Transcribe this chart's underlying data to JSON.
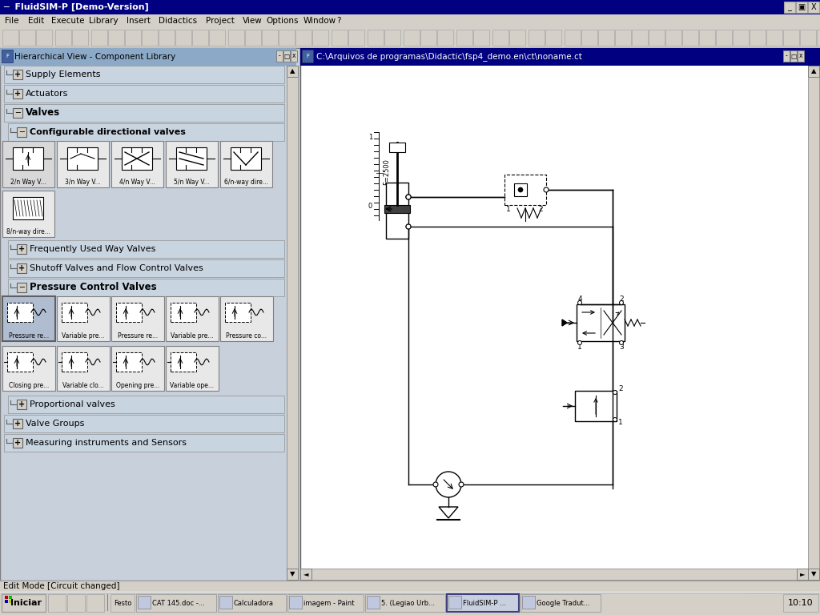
{
  "title_bar": "FluidSIM-P [Demo-Version]",
  "menu_items": [
    "File",
    "Edit",
    "Execute",
    "Library",
    "Insert",
    "Didactics",
    "Project",
    "View",
    "Options",
    "Window",
    "?"
  ],
  "left_panel_title": "Hierarchical View - Component Library",
  "right_panel_title": "C:\\Arquivos de programas\\Didactic\\fsp4_demo.en\\ct\\noname.ct",
  "status_bar": "Edit Mode [Circuit changed]",
  "taskbar_time": "10:10",
  "taskbar_items": [
    "Iniciar",
    "Festo",
    "CAT 145.doc -...",
    "Calculadora",
    "imagem - Paint",
    "5. (Legiao Urb...",
    "FluidSIM-P ...",
    "Google Tradut..."
  ],
  "valve_labels_row1": [
    "2/n Way V...",
    "3/n Way V...",
    "4/n Way V...",
    "5/n Way V...",
    "6/n-way dire..."
  ],
  "valve_labels_row2": [
    "8/n-way dire..."
  ],
  "pressure_labels_row1": [
    "Pressure re...",
    "Variable pre...",
    "Pressure re...",
    "Variable pre...",
    "Pressure co..."
  ],
  "pressure_labels_row2": [
    "Closing pre...",
    "Variable clo...",
    "Opening pre...",
    "Variable ope..."
  ],
  "bg_color": "#d4d0c8",
  "left_panel_bg": "#c8d0dc",
  "left_panel_header": "#8caccc",
  "right_panel_bg": "#ffffff",
  "title_bar_color": "#000080",
  "menu_bar_bg": "#d4d0c8",
  "toolbar_bg": "#d4d0c8",
  "section_header_bg": "#b8c8d8",
  "section_sub_bg": "#c8d0d8",
  "icon_bg": "#e8e8e8",
  "icon_selected_bg": "#b0b8c8",
  "scrollbar_bg": "#d4d0c8"
}
